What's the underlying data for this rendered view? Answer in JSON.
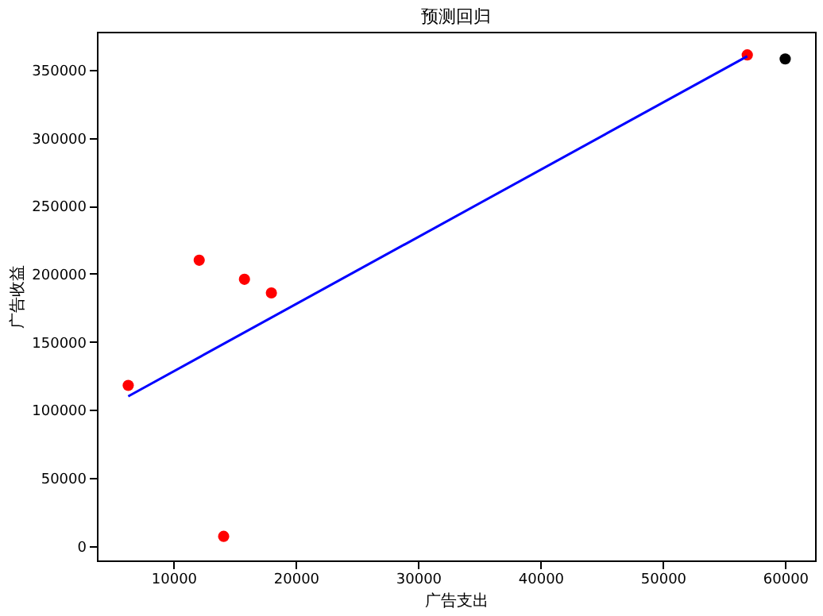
{
  "chart_data": {
    "type": "scatter",
    "title": "预测回归",
    "xlabel": "广告支出",
    "ylabel": "广告收益",
    "xlim": [
      3740,
      62440
    ],
    "xticks": [
      10000,
      20000,
      30000,
      40000,
      50000,
      60000
    ],
    "ylim": [
      -10700,
      378000
    ],
    "yticks": [
      0,
      50000,
      100000,
      150000,
      200000,
      250000,
      300000,
      350000
    ],
    "grid": false,
    "marker": "circle",
    "series": [
      {
        "color": "#ff0000",
        "x": [
          6300,
          12100,
          15800,
          18000,
          14100,
          56900
        ],
        "values": [
          118000,
          210000,
          196000,
          186000,
          7000,
          361000
        ]
      },
      {
        "color": "#000000",
        "x": [
          60000
        ],
        "values": [
          358000
        ]
      },
      {
        "type": "line",
        "color": "#0000ff",
        "line_style": "solid",
        "marker": "none",
        "x": [
          6300,
          56900
        ],
        "values": [
          110000,
          360000
        ]
      }
    ]
  }
}
